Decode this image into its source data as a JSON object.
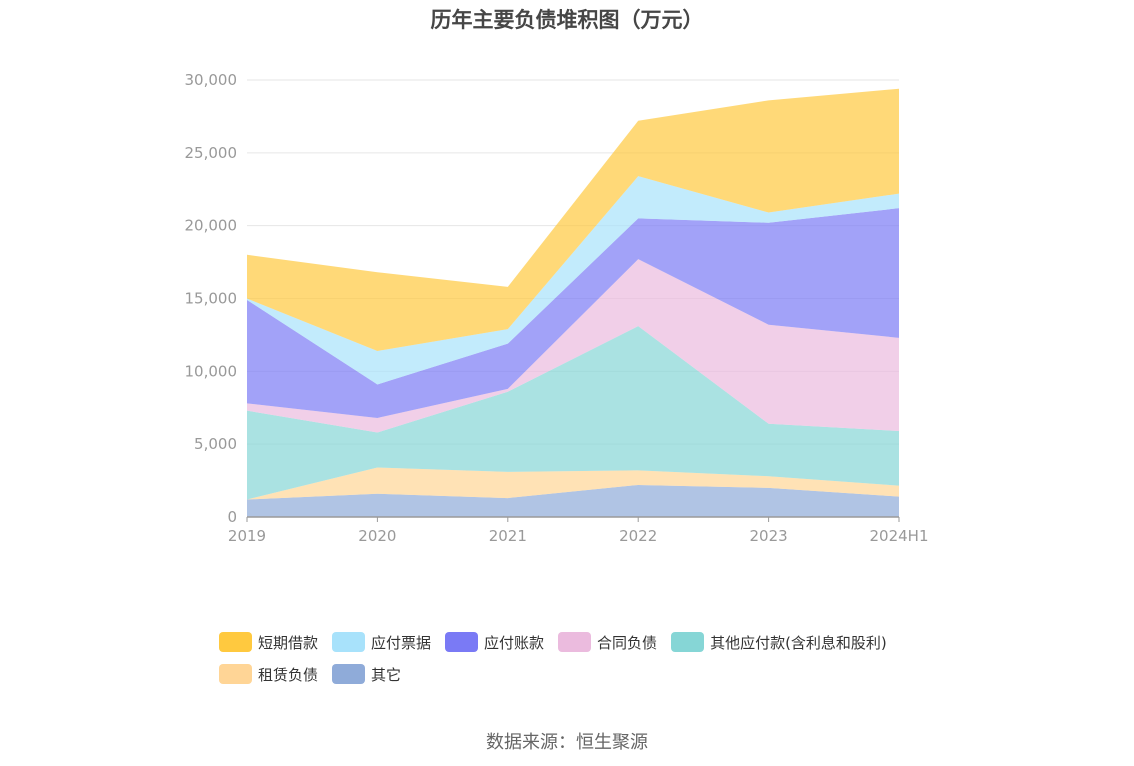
{
  "chart_data": {
    "type": "area",
    "stacked": true,
    "title": "历年主要负债堆积图（万元）",
    "source": "数据来源：恒生聚源",
    "categories": [
      "2019",
      "2020",
      "2021",
      "2022",
      "2023",
      "2024H1"
    ],
    "ylim": [
      0,
      30000
    ],
    "yticks": [
      0,
      5000,
      10000,
      15000,
      20000,
      25000,
      30000
    ],
    "ytick_labels": [
      "0",
      "5,000",
      "10,000",
      "15,000",
      "20,000",
      "25,000",
      "30,000"
    ],
    "grid": true,
    "legend_position": "bottom",
    "series": [
      {
        "name": "其它",
        "color": "#8fabd9",
        "values": [
          1200,
          1600,
          1300,
          2200,
          2000,
          1400
        ]
      },
      {
        "name": "租赁负债",
        "color": "#ffd596",
        "values": [
          0,
          1800,
          1800,
          1000,
          800,
          750
        ]
      },
      {
        "name": "其他应付款(含利息和股利)",
        "color": "#86d6d6",
        "values": [
          6100,
          2400,
          5500,
          9900,
          3600,
          3750
        ]
      },
      {
        "name": "合同负债",
        "color": "#ebbbde",
        "values": [
          500,
          1000,
          200,
          4600,
          6800,
          6400
        ]
      },
      {
        "name": "应付账款",
        "color": "#7a7af5",
        "values": [
          7100,
          2300,
          3100,
          2800,
          7000,
          8900
        ]
      },
      {
        "name": "应付票据",
        "color": "#a8e2fb",
        "values": [
          100,
          2300,
          1000,
          2900,
          700,
          1000
        ]
      },
      {
        "name": "短期借款",
        "color": "#ffc93f",
        "values": [
          3000,
          5400,
          2900,
          3800,
          7700,
          7200
        ]
      }
    ],
    "legend_order": [
      "短期借款",
      "应付票据",
      "应付账款",
      "合同负债",
      "其他应付款(含利息和股利)",
      "租赁负债",
      "其它"
    ]
  }
}
